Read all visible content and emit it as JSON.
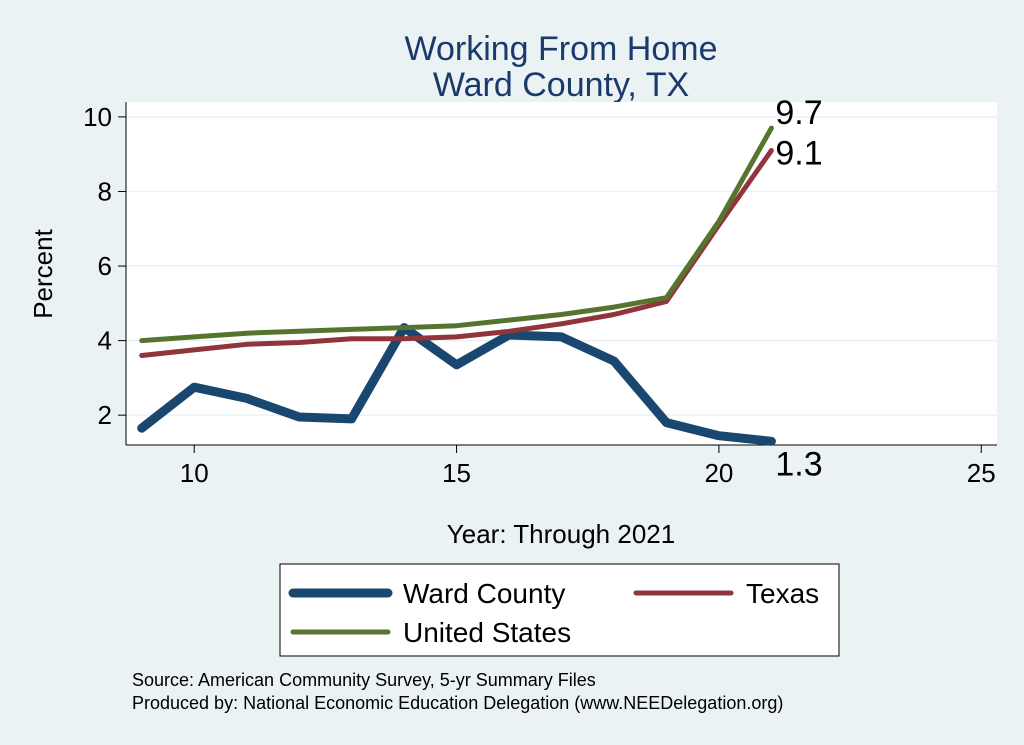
{
  "chart_data": {
    "type": "line",
    "title": [
      "Working From Home",
      "Ward County, TX"
    ],
    "xlabel": "Year: Through 2021",
    "ylabel": "Percent",
    "xlim": [
      8.7,
      25.3
    ],
    "ylim": [
      1.2,
      10.4
    ],
    "xticks": [
      10,
      15,
      20,
      25
    ],
    "yticks": [
      2,
      4,
      6,
      8,
      10
    ],
    "grid": true,
    "legend_position": "bottom",
    "series": [
      {
        "name": "Ward County",
        "color": "#1a476f",
        "x": [
          9,
          10,
          11,
          12,
          13,
          14,
          15,
          16,
          17,
          18,
          19,
          20,
          21
        ],
        "y": [
          1.65,
          2.75,
          2.45,
          1.95,
          1.9,
          4.35,
          3.35,
          4.15,
          4.1,
          3.45,
          1.8,
          1.45,
          1.3
        ],
        "end_label": "1.3"
      },
      {
        "name": "Texas",
        "color": "#90353b",
        "x": [
          9,
          10,
          11,
          12,
          13,
          14,
          15,
          16,
          17,
          18,
          19,
          20,
          21
        ],
        "y": [
          3.6,
          3.75,
          3.9,
          3.95,
          4.05,
          4.05,
          4.1,
          4.25,
          4.45,
          4.7,
          5.05,
          7.1,
          9.1
        ],
        "end_label": "9.1"
      },
      {
        "name": "United States",
        "color": "#55752f",
        "x": [
          9,
          10,
          11,
          12,
          13,
          14,
          15,
          16,
          17,
          18,
          19,
          20,
          21
        ],
        "y": [
          4.0,
          4.1,
          4.2,
          4.25,
          4.3,
          4.35,
          4.4,
          4.55,
          4.7,
          4.9,
          5.15,
          7.2,
          9.7
        ],
        "end_label": "9.7"
      }
    ]
  },
  "notes": [
    "Source: American Community Survey, 5-yr Summary Files",
    "Produced by: National Economic Education Delegation (www.NEEDelegation.org)"
  ]
}
